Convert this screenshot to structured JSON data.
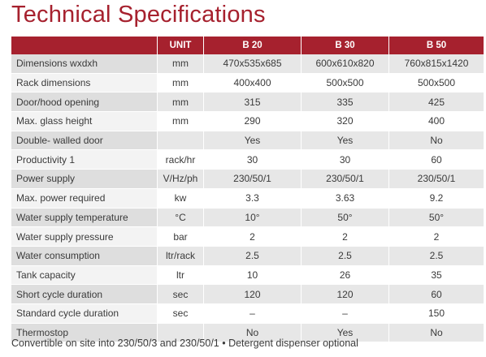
{
  "title": "Technical Specifications",
  "table": {
    "headers": [
      "",
      "UNIT",
      "B 20",
      "B 30",
      "B 50"
    ],
    "rows": [
      [
        "Dimensions wxdxh",
        "mm",
        "470x535x685",
        "600x610x820",
        "760x815x1420"
      ],
      [
        "Rack dimensions",
        "mm",
        "400x400",
        "500x500",
        "500x500"
      ],
      [
        "Door/hood opening",
        "mm",
        "315",
        "335",
        "425"
      ],
      [
        "Max. glass height",
        "mm",
        "290",
        "320",
        "400"
      ],
      [
        "Double- walled door",
        "",
        "Yes",
        "Yes",
        "No"
      ],
      [
        "Productivity 1",
        "rack/hr",
        "30",
        "30",
        "60"
      ],
      [
        "Power supply",
        "V/Hz/ph",
        "230/50/1",
        "230/50/1",
        "230/50/1"
      ],
      [
        "Max. power required",
        "kw",
        "3.3",
        "3.63",
        "9.2"
      ],
      [
        "Water supply temperature",
        "°C",
        "10°",
        "50°",
        "50°"
      ],
      [
        "Water supply pressure",
        "bar",
        "2",
        "2",
        "2"
      ],
      [
        "Water consumption",
        "ltr/rack",
        "2.5",
        "2.5",
        "2.5"
      ],
      [
        "Tank capacity",
        "ltr",
        "10",
        "26",
        "35"
      ],
      [
        "Short cycle duration",
        "sec",
        "120",
        "120",
        "60"
      ],
      [
        "Standard cycle duration",
        "sec",
        "–",
        "–",
        "150"
      ],
      [
        "Thermostop",
        "",
        "No",
        "Yes",
        "No"
      ]
    ]
  },
  "footnote": "Convertible on site into 230/50/3 and 230/50/1 • Detergent dispenser optional"
}
